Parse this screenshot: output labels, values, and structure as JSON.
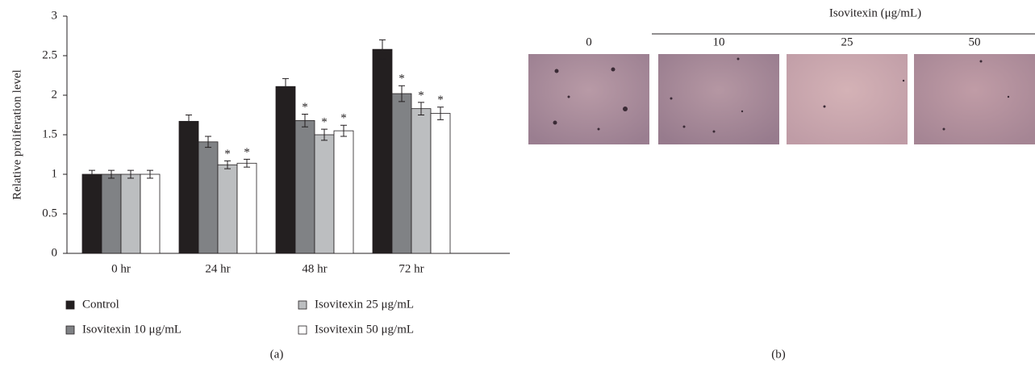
{
  "chart_data": {
    "type": "bar",
    "y_label": "Relative proliferation level",
    "categories": [
      "0 hr",
      "24 hr",
      "48 hr",
      "72 hr"
    ],
    "series": [
      {
        "name": "Control",
        "color": "#231f20",
        "values": [
          1.0,
          1.67,
          2.11,
          2.58
        ],
        "errors": [
          0.05,
          0.08,
          0.1,
          0.12
        ]
      },
      {
        "name": "Isovitexin 10 μg/mL",
        "color": "#808285",
        "values": [
          1.0,
          1.41,
          1.68,
          2.02
        ],
        "errors": [
          0.05,
          0.07,
          0.08,
          0.1
        ],
        "markers": [
          null,
          null,
          "*",
          "*"
        ]
      },
      {
        "name": "Isovitexin 25 μg/mL",
        "color": "#bcbec0",
        "values": [
          1.0,
          1.12,
          1.5,
          1.83
        ],
        "errors": [
          0.05,
          0.05,
          0.07,
          0.08
        ],
        "markers": [
          null,
          "*",
          "*",
          "*"
        ]
      },
      {
        "name": "Isovitexin 50 μg/mL",
        "color": "#ffffff",
        "values": [
          1.0,
          1.14,
          1.55,
          1.77
        ],
        "errors": [
          0.05,
          0.05,
          0.07,
          0.08
        ],
        "markers": [
          null,
          "*",
          "*",
          "*"
        ]
      }
    ],
    "ylim": [
      0,
      3
    ],
    "yticks": [
      0,
      0.5,
      1,
      1.5,
      2,
      2.5,
      3
    ],
    "caption": "(a)"
  },
  "panel_b": {
    "header": "Isovitexin (μg/mL)",
    "columns": [
      "0",
      "10",
      "25",
      "50"
    ],
    "caption": "(b)"
  }
}
